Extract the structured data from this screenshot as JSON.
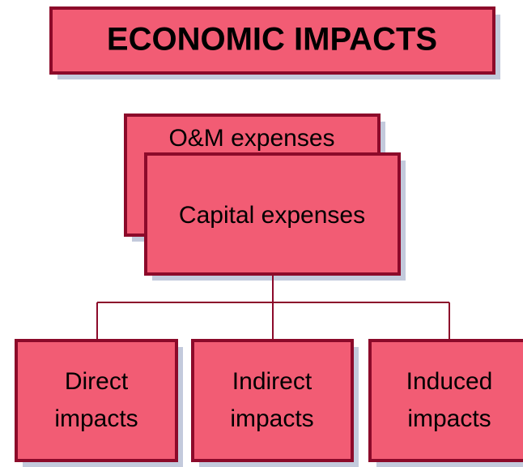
{
  "title": "ECONOMIC IMPACTS",
  "nodes": [
    {
      "lines": [
        "O&M expenses"
      ]
    },
    {
      "lines": [
        "Capital expenses"
      ]
    },
    {
      "lines": [
        "Direct",
        "impacts"
      ]
    },
    {
      "lines": [
        "Indirect",
        "impacts"
      ]
    },
    {
      "lines": [
        "Induced",
        "impacts"
      ]
    }
  ]
}
